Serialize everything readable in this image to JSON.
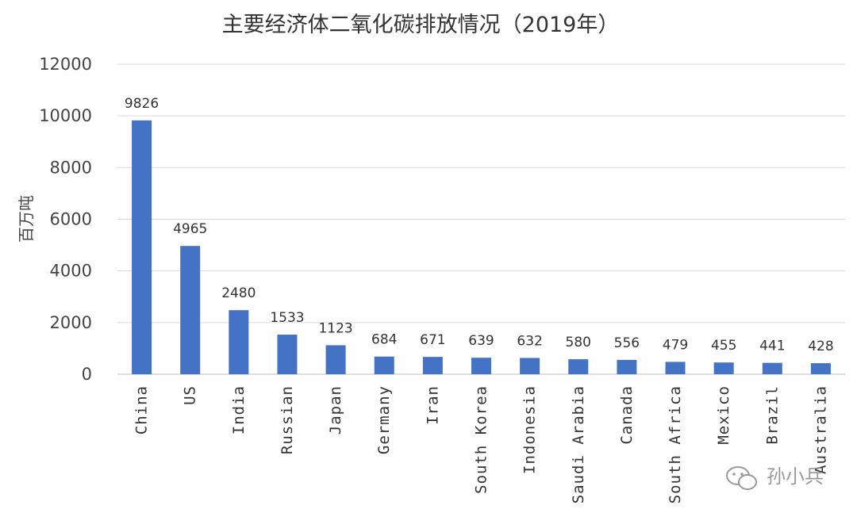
{
  "chart_data": {
    "type": "bar",
    "title": "主要经济体二氧化碳排放情况（2019年）",
    "ylabel": "百万吨",
    "xlabel": "",
    "ylim": [
      0,
      12000
    ],
    "yticks": [
      0,
      2000,
      4000,
      6000,
      8000,
      10000,
      12000
    ],
    "grid": true,
    "bar_color": "#4472c4",
    "categories": [
      "China",
      "US",
      "India",
      "Russian",
      "Japan",
      "Germany",
      "Iran",
      "South Korea",
      "Indonesia",
      "Saudi Arabia",
      "Canada",
      "South Africa",
      "Mexico",
      "Brazil",
      "Australia"
    ],
    "values": [
      9826,
      4965,
      2480,
      1533,
      1123,
      684,
      671,
      639,
      632,
      580,
      556,
      479,
      455,
      441,
      428
    ]
  },
  "watermark": {
    "text": "孙小兵",
    "icon": "wechat-icon"
  }
}
